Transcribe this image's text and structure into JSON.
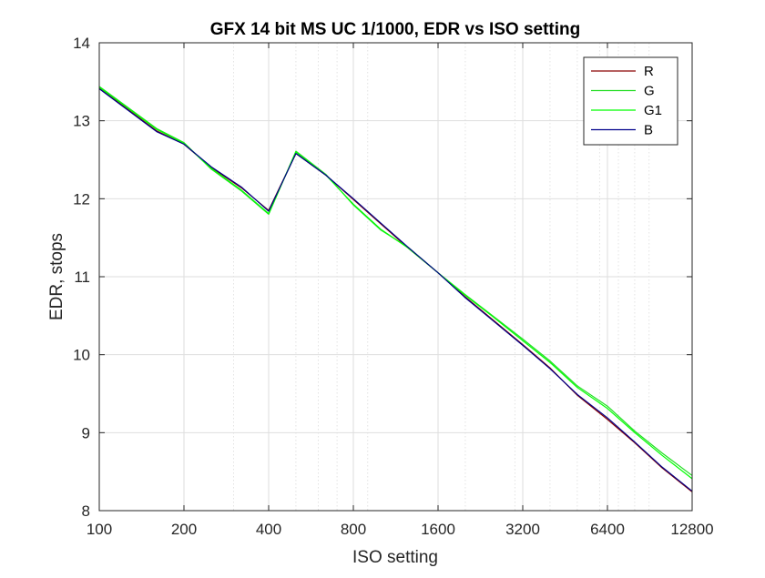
{
  "chart_data": {
    "type": "line",
    "title": "GFX 14 bit MS UC 1/1000, EDR vs ISO setting",
    "xlabel": "ISO setting",
    "ylabel": "EDR, stops",
    "x_scale": "log2",
    "xlim": [
      100,
      12800
    ],
    "ylim": [
      8,
      14
    ],
    "xticks": [
      100,
      200,
      400,
      800,
      1600,
      3200,
      6400,
      12800
    ],
    "xtick_labels": [
      "100",
      "200",
      "400",
      "800",
      "1600",
      "3200",
      "6400",
      "12800"
    ],
    "yticks": [
      8,
      9,
      10,
      11,
      12,
      13,
      14
    ],
    "ytick_labels": [
      "8",
      "9",
      "10",
      "11",
      "12",
      "13",
      "14"
    ],
    "grid": true,
    "legend_position": "top-right",
    "series": [
      {
        "name": "R",
        "color": "#8B0000",
        "x": [
          100,
          160,
          200,
          250,
          320,
          400,
          500,
          640,
          800,
          1000,
          1250,
          1600,
          2000,
          2500,
          3200,
          4000,
          5000,
          6400,
          8000,
          10000,
          12800
        ],
        "y": [
          13.42,
          12.87,
          12.7,
          12.4,
          12.14,
          11.85,
          12.58,
          12.3,
          11.99,
          11.68,
          11.37,
          11.05,
          10.74,
          10.45,
          10.13,
          9.83,
          9.48,
          9.17,
          8.87,
          8.55,
          8.24
        ]
      },
      {
        "name": "G",
        "color": "#22DD22",
        "x": [
          100,
          160,
          200,
          250,
          320,
          400,
          500,
          640,
          800,
          1000,
          1250,
          1600,
          2000,
          2500,
          3200,
          4000,
          5000,
          6400,
          8000,
          10000,
          12800
        ],
        "y": [
          13.44,
          12.9,
          12.72,
          12.38,
          12.1,
          11.8,
          12.61,
          12.31,
          11.92,
          11.6,
          11.38,
          11.05,
          10.77,
          10.5,
          10.2,
          9.92,
          9.6,
          9.34,
          9.02,
          8.74,
          8.45
        ]
      },
      {
        "name": "G1",
        "color": "#00FF00",
        "x": [
          100,
          160,
          200,
          250,
          320,
          400,
          500,
          640,
          800,
          1000,
          1250,
          1600,
          2000,
          2500,
          3200,
          4000,
          5000,
          6400,
          8000,
          10000,
          12800
        ],
        "y": [
          13.43,
          12.89,
          12.71,
          12.39,
          12.11,
          11.81,
          12.6,
          12.3,
          11.93,
          11.61,
          11.37,
          11.05,
          10.76,
          10.49,
          10.18,
          9.9,
          9.58,
          9.31,
          9.0,
          8.71,
          8.41
        ]
      },
      {
        "name": "B",
        "color": "#00008B",
        "x": [
          100,
          160,
          200,
          250,
          320,
          400,
          500,
          640,
          800,
          1000,
          1250,
          1600,
          2000,
          2500,
          3200,
          4000,
          5000,
          6400,
          8000,
          10000,
          12800
        ],
        "y": [
          13.41,
          12.86,
          12.7,
          12.41,
          12.15,
          11.84,
          12.58,
          12.3,
          12.0,
          11.69,
          11.38,
          11.05,
          10.73,
          10.44,
          10.12,
          9.82,
          9.49,
          9.19,
          8.88,
          8.56,
          8.25
        ]
      }
    ]
  }
}
